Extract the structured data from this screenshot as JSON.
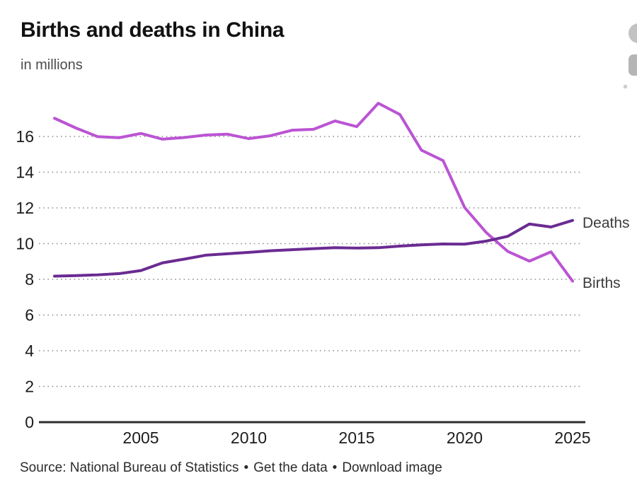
{
  "header": {
    "title": "Births and deaths in China",
    "subtitle": "in millions"
  },
  "footer": {
    "source": "Source: National Bureau of Statistics",
    "dot": "•",
    "get_data": "Get the data",
    "download": "Download image"
  },
  "edge_buttons": [
    {
      "icon": "circle-button-partial"
    },
    {
      "icon": "square-button-partial"
    }
  ],
  "chart_data": {
    "type": "line",
    "title": "Births and deaths in China",
    "subtitle": "in millions",
    "xlabel": "",
    "ylabel": "in millions",
    "x": [
      2001,
      2002,
      2003,
      2004,
      2005,
      2006,
      2007,
      2008,
      2009,
      2010,
      2011,
      2012,
      2013,
      2014,
      2015,
      2016,
      2017,
      2018,
      2019,
      2020,
      2021,
      2022,
      2023,
      2024,
      2025
    ],
    "series": [
      {
        "name": "Births",
        "color": "#bb54d3",
        "values": [
          17.02,
          16.47,
          15.99,
          15.93,
          16.17,
          15.85,
          15.94,
          16.08,
          16.13,
          15.88,
          16.04,
          16.35,
          16.4,
          16.87,
          16.55,
          17.86,
          17.23,
          15.23,
          14.65,
          12.02,
          10.62,
          9.56,
          9.02,
          9.54,
          7.9
        ]
      },
      {
        "name": "Deaths",
        "color": "#6a2b92",
        "values": [
          8.18,
          8.21,
          8.25,
          8.32,
          8.49,
          8.92,
          9.13,
          9.35,
          9.43,
          9.51,
          9.6,
          9.66,
          9.72,
          9.77,
          9.75,
          9.77,
          9.86,
          9.93,
          9.98,
          9.97,
          10.14,
          10.41,
          11.1,
          10.93,
          11.3
        ]
      }
    ],
    "yticks": [
      0,
      2,
      4,
      6,
      8,
      10,
      12,
      14,
      16
    ],
    "xticks": [
      2005,
      2010,
      2015,
      2020,
      2025
    ],
    "ylim": [
      0,
      18.3
    ],
    "grid": "horizontal-dotted",
    "legend": "inline-right-of-lines"
  }
}
